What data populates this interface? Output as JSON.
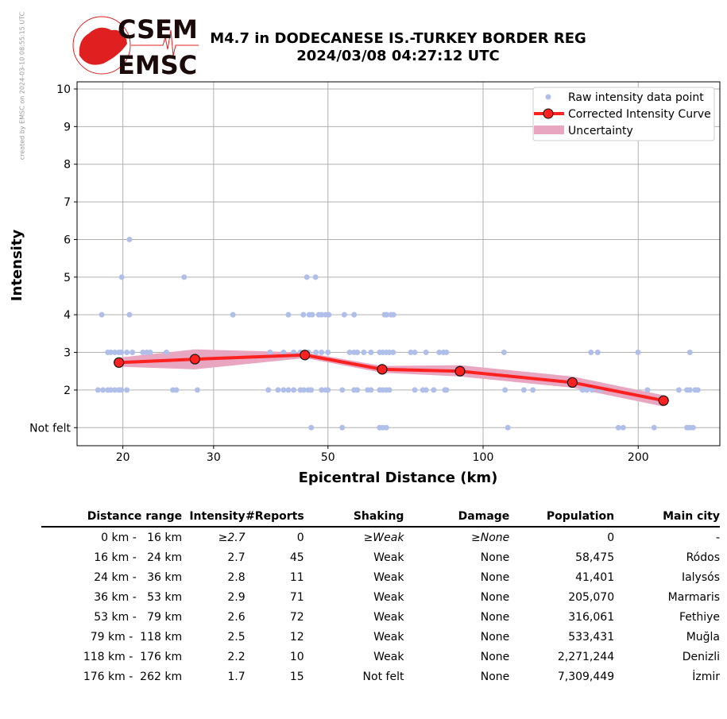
{
  "side_note": "created by EMSC on 2024-03-10 08:55:15 UTC",
  "logo": {
    "top": "CSEM",
    "bottom": "EMSC"
  },
  "title_line1": "M4.7 in DODECANESE IS.-TURKEY BORDER REG",
  "title_line2": "2024/03/08 04:27:12 UTC",
  "colors": {
    "raw": "#b0bfea",
    "curve": "#ff2020",
    "band": "#e8a6c0",
    "grid": "#b0b0b0"
  },
  "chart_data": {
    "type": "scatter",
    "xlabel": "Epicentral Distance (km)",
    "ylabel": "Intensity",
    "xscale": "log",
    "xlim": [
      16.3,
      288
    ],
    "ylim": [
      0.52,
      10.19
    ],
    "xticks": [
      {
        "v": 20,
        "label": "20"
      },
      {
        "v": 30,
        "label": "30"
      },
      {
        "v": 50,
        "label": "50"
      },
      {
        "v": 100,
        "label": "100"
      },
      {
        "v": 200,
        "label": "200"
      }
    ],
    "yticks": [
      {
        "v": 1,
        "label": "Not felt"
      },
      {
        "v": 2,
        "label": "2"
      },
      {
        "v": 3,
        "label": "3"
      },
      {
        "v": 4,
        "label": "4"
      },
      {
        "v": 5,
        "label": "5"
      },
      {
        "v": 6,
        "label": "6"
      },
      {
        "v": 7,
        "label": "7"
      },
      {
        "v": 8,
        "label": "8"
      },
      {
        "v": 9,
        "label": "9"
      },
      {
        "v": 10,
        "label": "10"
      }
    ],
    "grid": true,
    "legend": {
      "placement": "top-right",
      "entries": [
        "Raw intensity data point",
        "Corrected Intensity Curve",
        "Uncertainty"
      ]
    },
    "raw_points": [
      [
        20.6,
        6
      ],
      [
        19.9,
        5
      ],
      [
        26.3,
        5
      ],
      [
        45.5,
        5
      ],
      [
        47.3,
        5
      ],
      [
        18.2,
        4
      ],
      [
        20.6,
        4
      ],
      [
        32.7,
        4
      ],
      [
        41.9,
        4
      ],
      [
        44.8,
        4
      ],
      [
        46,
        4
      ],
      [
        46.6,
        4
      ],
      [
        48,
        4
      ],
      [
        48.6,
        4
      ],
      [
        49.5,
        4
      ],
      [
        50.2,
        4
      ],
      [
        53.8,
        4
      ],
      [
        56.2,
        4
      ],
      [
        64.4,
        4
      ],
      [
        65,
        4
      ],
      [
        66.3,
        4
      ],
      [
        67,
        4
      ],
      [
        18.7,
        3
      ],
      [
        18.95,
        3
      ],
      [
        19.3,
        3
      ],
      [
        19.65,
        3
      ],
      [
        19.86,
        3
      ],
      [
        20.36,
        3
      ],
      [
        20.87,
        3
      ],
      [
        21.87,
        3
      ],
      [
        22.26,
        3
      ],
      [
        22.6,
        3
      ],
      [
        24.3,
        3
      ],
      [
        38.6,
        3
      ],
      [
        41,
        3
      ],
      [
        42.9,
        3
      ],
      [
        44.2,
        3
      ],
      [
        45.8,
        3
      ],
      [
        47.4,
        3
      ],
      [
        48.6,
        3
      ],
      [
        50,
        3
      ],
      [
        55.1,
        3
      ],
      [
        56.2,
        3
      ],
      [
        57,
        3
      ],
      [
        58.7,
        3
      ],
      [
        60.6,
        3
      ],
      [
        63,
        3
      ],
      [
        63.9,
        3
      ],
      [
        64.9,
        3
      ],
      [
        65.8,
        3
      ],
      [
        66.9,
        3
      ],
      [
        72.4,
        3
      ],
      [
        73.7,
        3
      ],
      [
        77.5,
        3
      ],
      [
        82.2,
        3
      ],
      [
        83.8,
        3
      ],
      [
        84.9,
        3
      ],
      [
        109.8,
        3
      ],
      [
        161.9,
        3
      ],
      [
        166.9,
        3
      ],
      [
        199.8,
        3
      ],
      [
        251.9,
        3
      ],
      [
        17.9,
        2
      ],
      [
        18.3,
        2
      ],
      [
        18.7,
        2
      ],
      [
        18.95,
        2
      ],
      [
        19.3,
        2
      ],
      [
        19.65,
        2
      ],
      [
        19.86,
        2
      ],
      [
        20.36,
        2
      ],
      [
        25,
        2
      ],
      [
        25.4,
        2
      ],
      [
        27.9,
        2
      ],
      [
        38.3,
        2
      ],
      [
        40,
        2
      ],
      [
        41,
        2
      ],
      [
        41.9,
        2
      ],
      [
        42.9,
        2
      ],
      [
        44.2,
        2
      ],
      [
        44.9,
        2
      ],
      [
        45.8,
        2
      ],
      [
        46.4,
        2
      ],
      [
        48.6,
        2
      ],
      [
        49.5,
        2
      ],
      [
        50,
        2
      ],
      [
        53.3,
        2
      ],
      [
        56.2,
        2
      ],
      [
        57,
        2
      ],
      [
        59.7,
        2
      ],
      [
        60.6,
        2
      ],
      [
        63,
        2
      ],
      [
        63.9,
        2
      ],
      [
        64.9,
        2
      ],
      [
        65.8,
        2
      ],
      [
        73.7,
        2
      ],
      [
        76.4,
        2
      ],
      [
        77.5,
        2
      ],
      [
        80.2,
        2
      ],
      [
        84.3,
        2
      ],
      [
        84.9,
        2
      ],
      [
        110.3,
        2
      ],
      [
        120,
        2
      ],
      [
        124.9,
        2
      ],
      [
        156,
        2
      ],
      [
        159,
        2
      ],
      [
        162.8,
        2
      ],
      [
        168.6,
        2
      ],
      [
        208.5,
        2
      ],
      [
        239.8,
        2
      ],
      [
        248.6,
        2
      ],
      [
        251.9,
        2
      ],
      [
        258,
        2
      ],
      [
        261,
        2
      ],
      [
        46.4,
        1
      ],
      [
        53.3,
        1
      ],
      [
        63,
        1
      ],
      [
        63.9,
        1
      ],
      [
        64.9,
        1
      ],
      [
        111.7,
        1
      ],
      [
        183,
        1
      ],
      [
        187,
        1
      ],
      [
        214.7,
        1
      ],
      [
        248.6,
        1
      ],
      [
        251.9,
        1
      ],
      [
        255.6,
        1
      ]
    ],
    "curve": {
      "x": [
        19.65,
        27.6,
        45.1,
        63.7,
        90.2,
        149,
        224
      ],
      "y": [
        2.73,
        2.82,
        2.93,
        2.55,
        2.5,
        2.2,
        1.72
      ]
    },
    "uncertainty": {
      "lower": [
        2.62,
        2.55,
        2.85,
        2.46,
        2.36,
        2.06,
        1.56
      ],
      "upper": [
        2.86,
        3.08,
        3.0,
        2.64,
        2.66,
        2.36,
        1.86
      ]
    }
  },
  "table": {
    "headers": [
      "Distance range",
      "Intensity",
      "#Reports",
      "Shaking",
      "Damage",
      "Population",
      "Main city"
    ],
    "rows": [
      [
        "0 km -   16 km",
        "≥2.7",
        "0",
        "≥Weak",
        "≥None",
        "0",
        "-"
      ],
      [
        "16 km -   24 km",
        "2.7",
        "45",
        "Weak",
        "None",
        "58,475",
        "Ródos"
      ],
      [
        "24 km -   36 km",
        "2.8",
        "11",
        "Weak",
        "None",
        "41,401",
        "Ialysós"
      ],
      [
        "36 km -   53 km",
        "2.9",
        "71",
        "Weak",
        "None",
        "205,070",
        "Marmaris"
      ],
      [
        "53 km -   79 km",
        "2.6",
        "72",
        "Weak",
        "None",
        "316,061",
        "Fethiye"
      ],
      [
        "79 km -  118 km",
        "2.5",
        "12",
        "Weak",
        "None",
        "533,431",
        "Muğla"
      ],
      [
        "118 km -  176 km",
        "2.2",
        "10",
        "Weak",
        "None",
        "2,271,244",
        "Denizli"
      ],
      [
        "176 km -  262 km",
        "1.7",
        "15",
        "Not felt",
        "None",
        "7,309,449",
        "İzmir"
      ]
    ]
  }
}
